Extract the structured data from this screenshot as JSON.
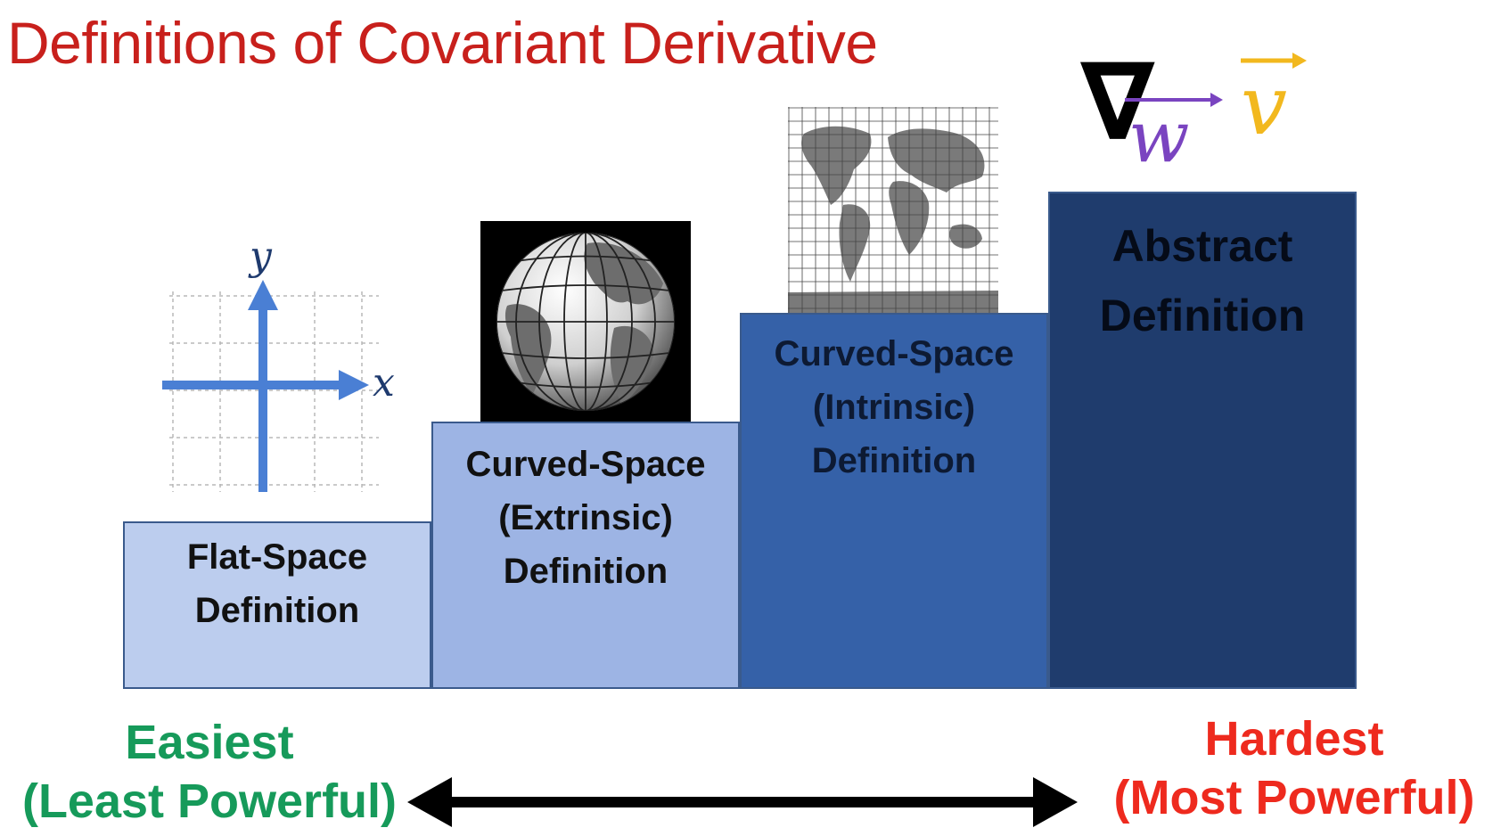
{
  "title": "Definitions of Covariant Derivative",
  "steps": [
    {
      "line1": "Flat-Space",
      "line2": "Definition"
    },
    {
      "line1": "Curved-Space",
      "line2": "(Extrinsic)",
      "line3": "Definition"
    },
    {
      "line1": "Curved-Space",
      "line2": "(Intrinsic)",
      "line3": "Definition"
    },
    {
      "line1": "Abstract",
      "line2": "Definition"
    }
  ],
  "axes": {
    "x_label": "x",
    "y_label": "y"
  },
  "notation": {
    "symbol": "∇",
    "subscript": "w",
    "vector": "v"
  },
  "easiest": {
    "line1": "Easiest",
    "line2": "(Least Powerful)"
  },
  "hardest": {
    "line1": "Hardest",
    "line2": "(Most Powerful)"
  },
  "colors": {
    "title": "#c8201c",
    "easiest": "#169a5a",
    "hardest": "#ee2a1e",
    "step1": "#bccdee",
    "step2": "#9db4e4",
    "step3": "#3561a8",
    "step4": "#1f3c6d",
    "axes": "#4a7fd4",
    "subscript_w": "#7a44c0",
    "vector_v": "#f2b81e"
  }
}
